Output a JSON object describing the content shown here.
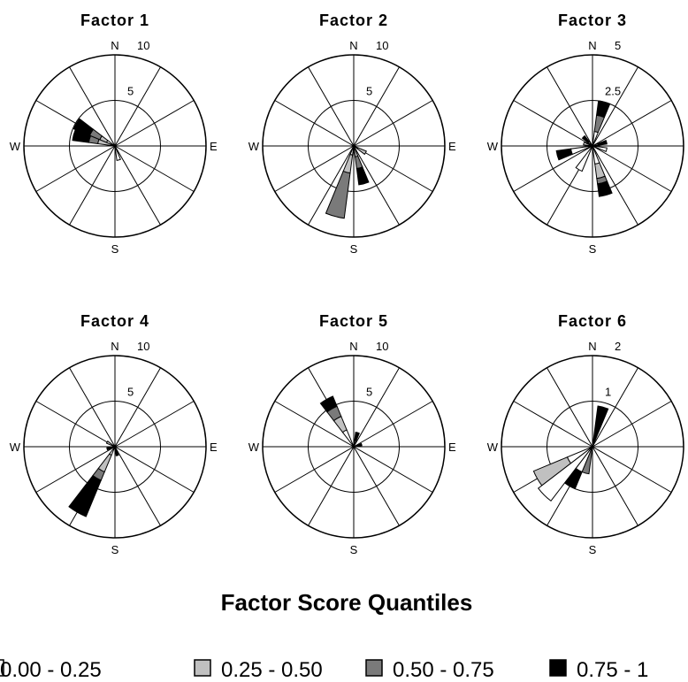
{
  "legend": {
    "title": "Factor Score Quantiles",
    "items": [
      {
        "label": "0.00 - 0.25",
        "color": "#ffffff"
      },
      {
        "label": "0.25 - 0.50",
        "color": "#c0c0c0"
      },
      {
        "label": "0.50 - 0.75",
        "color": "#7a7a7a"
      },
      {
        "label": "0.75 - 1",
        "color": "#000000"
      }
    ]
  },
  "directions": {
    "n": "N",
    "e": "E",
    "s": "S",
    "w": "W"
  },
  "chart_data": [
    {
      "type": "polar-bar",
      "title": "Factor 1",
      "rmax": 10,
      "rmax_label": "10",
      "rmid": 5,
      "rmid_label": "5",
      "sectors": [
        {
          "bearing": 300,
          "values": [
            1.0,
            0.8,
            1.2,
            1.9
          ]
        },
        {
          "bearing": 285,
          "values": [
            0.5,
            1.4,
            1.0,
            1.8
          ]
        },
        {
          "bearing": 165,
          "values": [
            1.6,
            0,
            0,
            0
          ]
        }
      ]
    },
    {
      "type": "polar-bar",
      "title": "Factor 2",
      "rmax": 10,
      "rmax_label": "10",
      "rmid": 5,
      "rmid_label": "5",
      "sectors": [
        {
          "bearing": 195,
          "values": [
            1.0,
            2.0,
            5.0,
            0
          ]
        },
        {
          "bearing": 165,
          "values": [
            0,
            1.2,
            1.3,
            1.8
          ]
        },
        {
          "bearing": 120,
          "values": [
            0.5,
            1.0,
            0,
            0
          ]
        }
      ]
    },
    {
      "type": "polar-bar",
      "title": "Factor 3",
      "rmax": 5,
      "rmax_label": "5",
      "rmid": 2.5,
      "rmid_label": "2.5",
      "sectors": [
        {
          "bearing": 15,
          "values": [
            0.8,
            0,
            0.9,
            0.8
          ]
        },
        {
          "bearing": 315,
          "values": [
            0.3,
            0,
            0,
            0.4
          ]
        },
        {
          "bearing": 75,
          "values": [
            0.3,
            0,
            0,
            0.5
          ]
        },
        {
          "bearing": 105,
          "values": [
            0.8,
            0,
            0,
            0
          ]
        },
        {
          "bearing": 165,
          "values": [
            1.0,
            0.8,
            0.3,
            0.7
          ]
        },
        {
          "bearing": 210,
          "values": [
            1.5,
            0,
            0,
            0
          ]
        },
        {
          "bearing": 255,
          "values": [
            1.2,
            0,
            0,
            0.8
          ]
        },
        {
          "bearing": 285,
          "values": [
            0.5,
            0,
            0,
            0
          ]
        }
      ]
    },
    {
      "type": "polar-bar",
      "title": "Factor 4",
      "rmax": 10,
      "rmax_label": "10",
      "rmid": 5,
      "rmid_label": "5",
      "sectors": [
        {
          "bearing": 210,
          "values": [
            1.0,
            2.0,
            1.0,
            4.3
          ]
        },
        {
          "bearing": 300,
          "values": [
            0,
            1.0,
            0,
            0
          ]
        },
        {
          "bearing": 255,
          "values": [
            0,
            0,
            0.5,
            0.4
          ]
        },
        {
          "bearing": 165,
          "values": [
            0.3,
            0,
            0,
            0.7
          ]
        }
      ]
    },
    {
      "type": "polar-bar",
      "title": "Factor 5",
      "rmax": 10,
      "rmax_label": "10",
      "rmid": 5,
      "rmid_label": "5",
      "sectors": [
        {
          "bearing": 330,
          "values": [
            2.0,
            1.6,
            1.2,
            1.2
          ]
        },
        {
          "bearing": 15,
          "values": [
            0,
            0,
            0.7,
            0.9
          ]
        },
        {
          "bearing": 75,
          "values": [
            0,
            0,
            0.4,
            0.5
          ]
        }
      ]
    },
    {
      "type": "polar-bar",
      "title": "Factor 6",
      "rmax": 2,
      "rmax_label": "2",
      "rmid": 1,
      "rmid_label": "1",
      "sectors": [
        {
          "bearing": 15,
          "values": [
            0,
            0,
            0,
            0.9
          ]
        },
        {
          "bearing": 240,
          "values": [
            0.6,
            0.8,
            0,
            0
          ]
        },
        {
          "bearing": 225,
          "values": [
            1.5,
            0,
            0,
            0
          ]
        },
        {
          "bearing": 210,
          "values": [
            0.6,
            0,
            0,
            0.4
          ]
        },
        {
          "bearing": 195,
          "values": [
            0,
            0,
            0.6,
            0
          ]
        }
      ]
    }
  ]
}
